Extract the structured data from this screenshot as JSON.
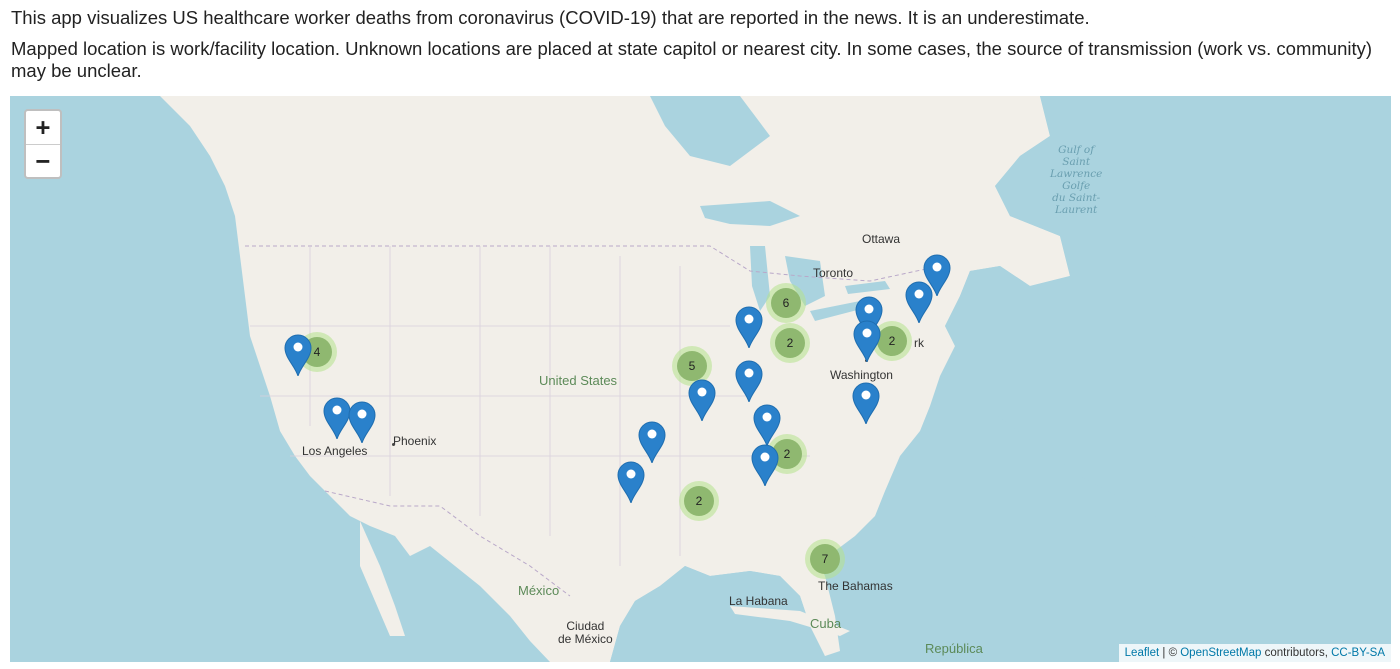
{
  "intro": {
    "line1": "This app visualizes US healthcare worker deaths from coronavirus (COVID-19) that are reported in the news. It is an underestimate.",
    "line2": "Mapped location is work/facility location. Unknown locations are placed at state capitol or nearest city. In some cases, the source of transmission (work vs. community) may be unclear."
  },
  "zoom": {
    "in_label": "+",
    "out_label": "−"
  },
  "labels": {
    "ottawa": "Ottawa",
    "toronto": "Toronto",
    "united_states": "United States",
    "washington": "Washington",
    "phoenix": "Phoenix",
    "los_angeles": "Los Angeles",
    "mexico": "México",
    "ciudad_de_mexico": "Ciudad\nde México",
    "la_habana": "La Habana",
    "the_bahamas": "The Bahamas",
    "cuba": "Cuba",
    "republica": "República",
    "york_fragment": "rk",
    "gulf_st_lawrence": "Gulf of\nSaint\nLawrence\nGolfe\ndu Saint-\nLaurent"
  },
  "clusters": [
    {
      "id": "ca-north",
      "count": "4"
    },
    {
      "id": "michigan",
      "count": "6"
    },
    {
      "id": "ohio",
      "count": "2"
    },
    {
      "id": "new-york",
      "count": "2"
    },
    {
      "id": "missouri",
      "count": "5"
    },
    {
      "id": "georgia",
      "count": "2"
    },
    {
      "id": "louisiana",
      "count": "2"
    },
    {
      "id": "florida",
      "count": "7"
    }
  ],
  "markers": [
    "northern-california",
    "los-angeles-1",
    "los-angeles-2",
    "chicago",
    "indianapolis",
    "memphis",
    "shreveport",
    "houston",
    "tennessee",
    "atlanta",
    "new-york-upstate",
    "new-jersey",
    "massachusetts",
    "boston-north",
    "virginia"
  ],
  "attribution": {
    "leaflet": "Leaflet",
    "separator": " | © ",
    "osm": "OpenStreetMap",
    "contributors": " contributors, ",
    "license": "CC-BY-SA"
  },
  "colors": {
    "water": "#aad3df",
    "land": "#f2efe9",
    "marker": "#2a81cb",
    "cluster": "#8fb870",
    "link": "#0078a8"
  }
}
